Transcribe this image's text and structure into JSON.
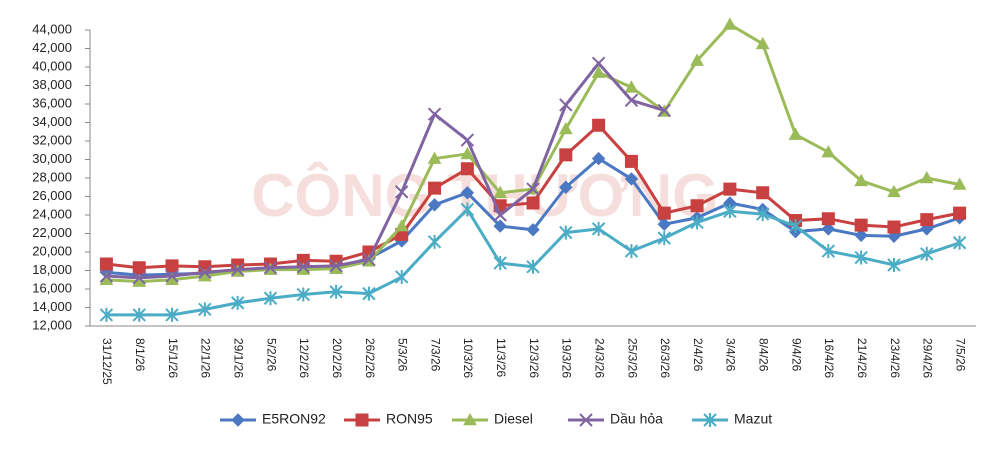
{
  "chart_data": {
    "type": "line",
    "watermark": "CÔNG THƯƠNG",
    "categories": [
      "31/12/25",
      "8/1/26",
      "15/1/26",
      "22/1/26",
      "29/1/26",
      "5/2/26",
      "12/2/26",
      "20/2/26",
      "26/2/26",
      "5/3/26",
      "7/3/26",
      "10/3/26",
      "11/3/26",
      "12/3/26",
      "19/3/26",
      "24/3/26",
      "25/3/26",
      "26/3/26",
      "2/4/26",
      "3/4/26",
      "8/4/26",
      "9/4/26",
      "16/4/26",
      "21/4/26",
      "23/4/26",
      "29/4/26",
      "7/5/26"
    ],
    "series": [
      {
        "name": "E5RON92",
        "color": "#4a78c2",
        "marker": "diamond",
        "values": [
          17800,
          17500,
          17600,
          17700,
          18100,
          18200,
          18400,
          18300,
          19300,
          21200,
          25100,
          26400,
          22800,
          22400,
          27000,
          30100,
          27900,
          23000,
          23700,
          25300,
          24600,
          22200,
          22500,
          21800,
          21700,
          22500,
          23700
        ]
      },
      {
        "name": "RON95",
        "color": "#c8403f",
        "marker": "square",
        "values": [
          18700,
          18300,
          18500,
          18400,
          18600,
          18700,
          19100,
          19000,
          20000,
          21900,
          26900,
          29000,
          25000,
          25300,
          30500,
          33700,
          29800,
          24200,
          25000,
          26800,
          26400,
          23400,
          23600,
          22900,
          22700,
          23500,
          24200
        ]
      },
      {
        "name": "Diesel",
        "color": "#9bbb59",
        "marker": "triangle",
        "values": [
          17000,
          16800,
          17000,
          17400,
          17900,
          18100,
          18100,
          18200,
          19000,
          22800,
          30100,
          30600,
          26400,
          26800,
          33300,
          39400,
          37800,
          35200,
          40700,
          44600,
          42500,
          32700,
          30800,
          27700,
          26500,
          28000,
          27300
        ]
      },
      {
        "name": "Dầu hỏa",
        "color": "#8064a2",
        "marker": "x",
        "values": [
          17400,
          17200,
          17400,
          17800,
          18100,
          18300,
          18400,
          18500,
          19200,
          26500,
          34900,
          32100,
          24000,
          26800,
          35900,
          40400,
          36400,
          35300,
          null,
          null,
          null,
          null,
          null,
          null,
          null,
          null,
          null
        ]
      },
      {
        "name": "Mazut",
        "color": "#4bacc6",
        "marker": "star",
        "values": [
          13200,
          13200,
          13200,
          13800,
          14500,
          15000,
          15400,
          15700,
          15500,
          17300,
          21100,
          24600,
          18800,
          18400,
          22100,
          22500,
          20100,
          21500,
          23200,
          24400,
          24100,
          22800,
          20100,
          19400,
          18600,
          19800,
          21000
        ]
      }
    ],
    "ylim": [
      12000,
      44000
    ],
    "yticks": [
      {
        "value": 12000,
        "label": "12,000"
      },
      {
        "value": 14000,
        "label": "14,000"
      },
      {
        "value": 16000,
        "label": "16,000"
      },
      {
        "value": 18000,
        "label": "18,000"
      },
      {
        "value": 20000,
        "label": "20,000"
      },
      {
        "value": 22000,
        "label": "22,000"
      },
      {
        "value": 24000,
        "label": "24,000"
      },
      {
        "value": 26000,
        "label": "26,000"
      },
      {
        "value": 28000,
        "label": "28,000"
      },
      {
        "value": 30000,
        "label": "30,000"
      },
      {
        "value": 32000,
        "label": "32,000"
      },
      {
        "value": 34000,
        "label": "34,000"
      },
      {
        "value": 36000,
        "label": "36,000"
      },
      {
        "value": 38000,
        "label": "38,000"
      },
      {
        "value": 40000,
        "label": "40,000"
      },
      {
        "value": 42000,
        "label": "42,000"
      },
      {
        "value": 44000,
        "label": "44,000"
      }
    ],
    "legend": "bottom"
  }
}
